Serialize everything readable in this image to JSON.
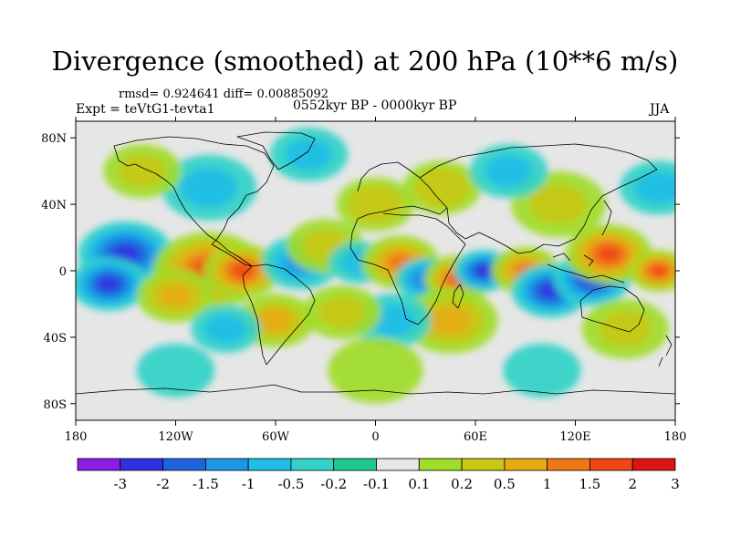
{
  "chart_data": {
    "type": "heatmap",
    "title": "Divergence (smoothed) at 200 hPa (10**6 m/s)",
    "stats_text": "rmsd= 0.924641 diff= 0.00885092",
    "period_label": "0552kyr BP - 0000kyr BP",
    "left_label": "Expt = teVtG1-tevta1",
    "right_label": "JJA",
    "x_axis": {
      "range": [
        -180,
        180
      ],
      "ticks": [
        {
          "value": -180,
          "label": "180"
        },
        {
          "value": -120,
          "label": "120W"
        },
        {
          "value": -60,
          "label": "60W"
        },
        {
          "value": 0,
          "label": "0"
        },
        {
          "value": 60,
          "label": "60E"
        },
        {
          "value": 120,
          "label": "120E"
        },
        {
          "value": 180,
          "label": "180"
        }
      ]
    },
    "y_axis": {
      "range": [
        -90,
        90
      ],
      "ticks": [
        {
          "value": 80,
          "label": "80N"
        },
        {
          "value": 40,
          "label": "40N"
        },
        {
          "value": 0,
          "label": "0"
        },
        {
          "value": -40,
          "label": "40S"
        },
        {
          "value": -80,
          "label": "80S"
        }
      ]
    },
    "colorbar": {
      "labels": [
        "-3",
        "-2",
        "-1.5",
        "-1",
        "-0.5",
        "-0.2",
        "-0.1",
        "0.1",
        "0.2",
        "0.5",
        "1",
        "1.5",
        "2",
        "3"
      ],
      "colors": [
        "#8a1ee6",
        "#3030e0",
        "#1e64dc",
        "#1e96e6",
        "#1ebee6",
        "#32d2c8",
        "#1ec890",
        "#e6e6e6",
        "#a0dc28",
        "#c8c814",
        "#e6aa14",
        "#f07814",
        "#f04614",
        "#dc1414"
      ]
    },
    "blobs": [
      {
        "lon": -150,
        "lat": 10,
        "r": 22,
        "value": -2.5
      },
      {
        "lon": -160,
        "lat": -8,
        "r": 18,
        "value": -3
      },
      {
        "lon": -100,
        "lat": 0,
        "r": 26,
        "value": 2.5
      },
      {
        "lon": -80,
        "lat": 0,
        "r": 18,
        "value": 3
      },
      {
        "lon": -120,
        "lat": -15,
        "r": 18,
        "value": 1.2
      },
      {
        "lon": -45,
        "lat": 5,
        "r": 18,
        "value": -1.2
      },
      {
        "lon": -30,
        "lat": 15,
        "r": 18,
        "value": 0.6
      },
      {
        "lon": -10,
        "lat": 5,
        "r": 14,
        "value": -0.8
      },
      {
        "lon": 15,
        "lat": 5,
        "r": 18,
        "value": 2
      },
      {
        "lon": 30,
        "lat": -5,
        "r": 14,
        "value": -1.5
      },
      {
        "lon": 50,
        "lat": -5,
        "r": 16,
        "value": 2.5
      },
      {
        "lon": 65,
        "lat": 0,
        "r": 14,
        "value": -2.5
      },
      {
        "lon": 90,
        "lat": 0,
        "r": 16,
        "value": 2
      },
      {
        "lon": 105,
        "lat": -12,
        "r": 18,
        "value": -3
      },
      {
        "lon": 130,
        "lat": -5,
        "r": 18,
        "value": -2.5
      },
      {
        "lon": 140,
        "lat": 10,
        "r": 20,
        "value": 2.5
      },
      {
        "lon": 170,
        "lat": 0,
        "r": 14,
        "value": 2.5
      },
      {
        "lon": 45,
        "lat": -30,
        "r": 22,
        "value": 1.2
      },
      {
        "lon": 10,
        "lat": -30,
        "r": 18,
        "value": -0.8
      },
      {
        "lon": -20,
        "lat": -25,
        "r": 18,
        "value": 0.6
      },
      {
        "lon": -60,
        "lat": -30,
        "r": 18,
        "value": 1.2
      },
      {
        "lon": -90,
        "lat": -35,
        "r": 16,
        "value": -0.8
      },
      {
        "lon": 150,
        "lat": -35,
        "r": 20,
        "value": 0.6
      },
      {
        "lon": 110,
        "lat": 40,
        "r": 22,
        "value": 0.8
      },
      {
        "lon": 40,
        "lat": 50,
        "r": 18,
        "value": 1
      },
      {
        "lon": 80,
        "lat": 60,
        "r": 18,
        "value": -0.6
      },
      {
        "lon": -100,
        "lat": 50,
        "r": 22,
        "value": -0.8
      },
      {
        "lon": -140,
        "lat": 60,
        "r": 18,
        "value": 0.6
      },
      {
        "lon": -40,
        "lat": 70,
        "r": 18,
        "value": -0.6
      },
      {
        "lon": 0,
        "lat": 40,
        "r": 18,
        "value": 1
      },
      {
        "lon": 170,
        "lat": 50,
        "r": 18,
        "value": -0.6
      },
      {
        "lon": 0,
        "lat": -60,
        "r": 22,
        "value": 0.5
      },
      {
        "lon": -120,
        "lat": -60,
        "r": 18,
        "value": -0.5
      },
      {
        "lon": 100,
        "lat": -60,
        "r": 18,
        "value": -0.4
      }
    ]
  }
}
